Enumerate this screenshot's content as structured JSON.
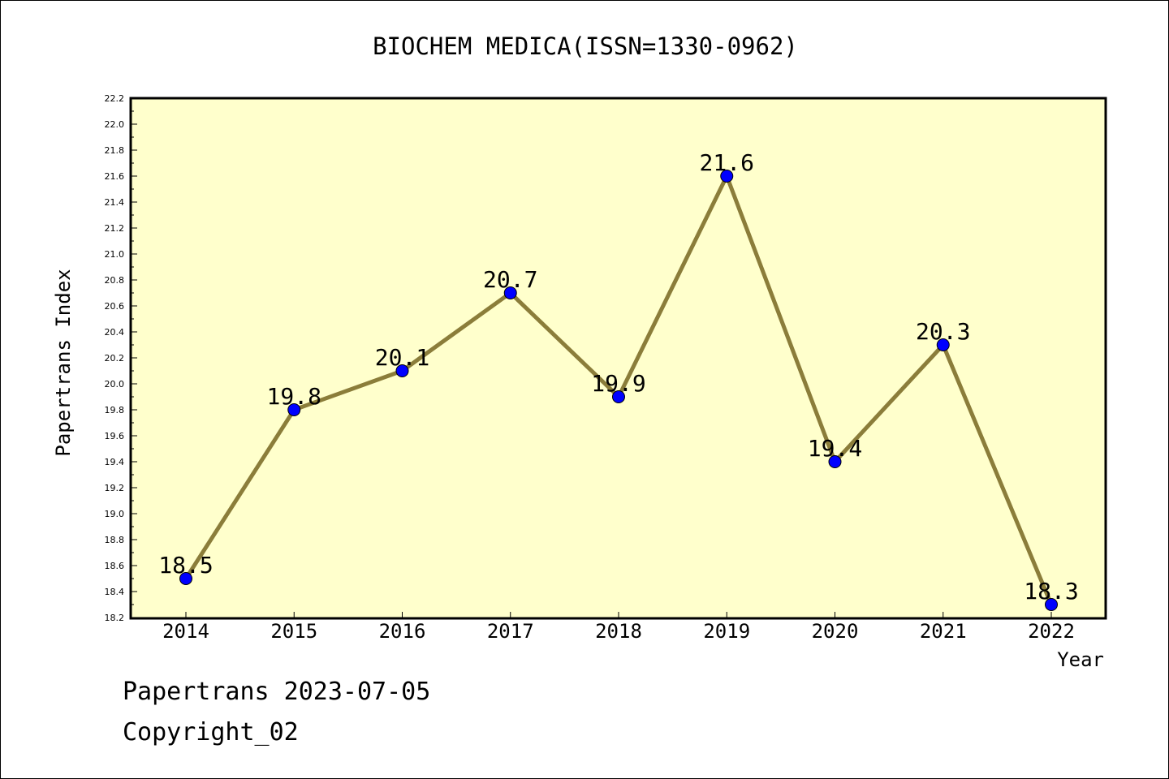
{
  "chart_data": {
    "type": "line",
    "title": "BIOCHEM MEDICA(ISSN=1330-0962)",
    "xlabel": "Year",
    "ylabel": "Papertrans Index",
    "x": [
      "2014",
      "2015",
      "2016",
      "2017",
      "2018",
      "2019",
      "2020",
      "2021",
      "2022"
    ],
    "series": [
      {
        "values": [
          18.5,
          19.8,
          20.1,
          20.7,
          19.9,
          21.6,
          19.4,
          20.3,
          18.3
        ],
        "data_labels": [
          "18.5",
          "19.8",
          "20.1",
          "20.7",
          "19.9",
          "21.6",
          "19.4",
          "20.3",
          "18.3"
        ]
      }
    ],
    "ylim": [
      18.2,
      22.2
    ],
    "yticks": [
      "18.2",
      "18.4",
      "18.6",
      "18.8",
      "19.0",
      "19.2",
      "19.4",
      "19.6",
      "19.8",
      "20.0",
      "20.2",
      "20.4",
      "20.6",
      "20.8",
      "21.0",
      "21.2",
      "21.4",
      "21.6",
      "21.8",
      "22.0",
      "22.2"
    ],
    "grid": false,
    "legend": "none"
  },
  "footer": {
    "line1": "Papertrans 2023-07-05",
    "line2": "Copyright_02"
  },
  "colors": {
    "plot_background": "#ffffcc",
    "line": "#8b7d3a",
    "marker": "#0000ff"
  }
}
